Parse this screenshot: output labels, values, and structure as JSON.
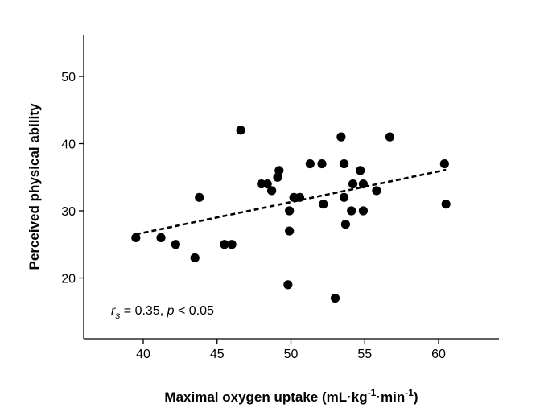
{
  "chart_data": {
    "type": "scatter",
    "title": "",
    "xlabel": {
      "main": "Maximal oxygen uptake (mL·kg",
      "sup1": "-1",
      "mid": "·min",
      "sup2": "-1",
      "end": ")"
    },
    "ylabel": "Perceived physical ability",
    "xlim": [
      35,
      64
    ],
    "ylim": [
      11,
      56
    ],
    "xticks": [
      40,
      45,
      50,
      55,
      60
    ],
    "yticks": [
      20,
      30,
      40,
      50
    ],
    "xtick_labels": [
      "40",
      "45",
      "50",
      "55",
      "60"
    ],
    "ytick_labels": [
      "20",
      "30",
      "40",
      "50"
    ],
    "grid": false,
    "points": [
      {
        "x": 39.5,
        "y": 26
      },
      {
        "x": 41.2,
        "y": 26
      },
      {
        "x": 42.2,
        "y": 25
      },
      {
        "x": 43.5,
        "y": 23
      },
      {
        "x": 43.8,
        "y": 32
      },
      {
        "x": 45.5,
        "y": 25
      },
      {
        "x": 46.0,
        "y": 25
      },
      {
        "x": 46.6,
        "y": 42
      },
      {
        "x": 48.0,
        "y": 34
      },
      {
        "x": 48.4,
        "y": 34
      },
      {
        "x": 48.7,
        "y": 33
      },
      {
        "x": 49.1,
        "y": 35
      },
      {
        "x": 49.2,
        "y": 36
      },
      {
        "x": 49.8,
        "y": 19
      },
      {
        "x": 49.9,
        "y": 27
      },
      {
        "x": 49.9,
        "y": 30
      },
      {
        "x": 50.2,
        "y": 32
      },
      {
        "x": 50.6,
        "y": 32
      },
      {
        "x": 51.3,
        "y": 37
      },
      {
        "x": 52.1,
        "y": 37
      },
      {
        "x": 52.2,
        "y": 31
      },
      {
        "x": 53.0,
        "y": 17
      },
      {
        "x": 53.4,
        "y": 41
      },
      {
        "x": 53.6,
        "y": 37
      },
      {
        "x": 53.6,
        "y": 32
      },
      {
        "x": 53.7,
        "y": 28
      },
      {
        "x": 54.1,
        "y": 30
      },
      {
        "x": 54.2,
        "y": 34
      },
      {
        "x": 54.7,
        "y": 36
      },
      {
        "x": 54.9,
        "y": 30
      },
      {
        "x": 54.9,
        "y": 34
      },
      {
        "x": 55.8,
        "y": 33
      },
      {
        "x": 56.7,
        "y": 41
      },
      {
        "x": 60.4,
        "y": 37
      },
      {
        "x": 60.5,
        "y": 31
      }
    ],
    "trendline": {
      "style": "dashed",
      "x": [
        39.5,
        60.5
      ],
      "y": [
        26.5,
        36.1
      ]
    },
    "annotation": {
      "r": "r",
      "sub": "s",
      "mid": " = 0.35, ",
      "p": "p",
      "end": " < 0.05"
    }
  }
}
